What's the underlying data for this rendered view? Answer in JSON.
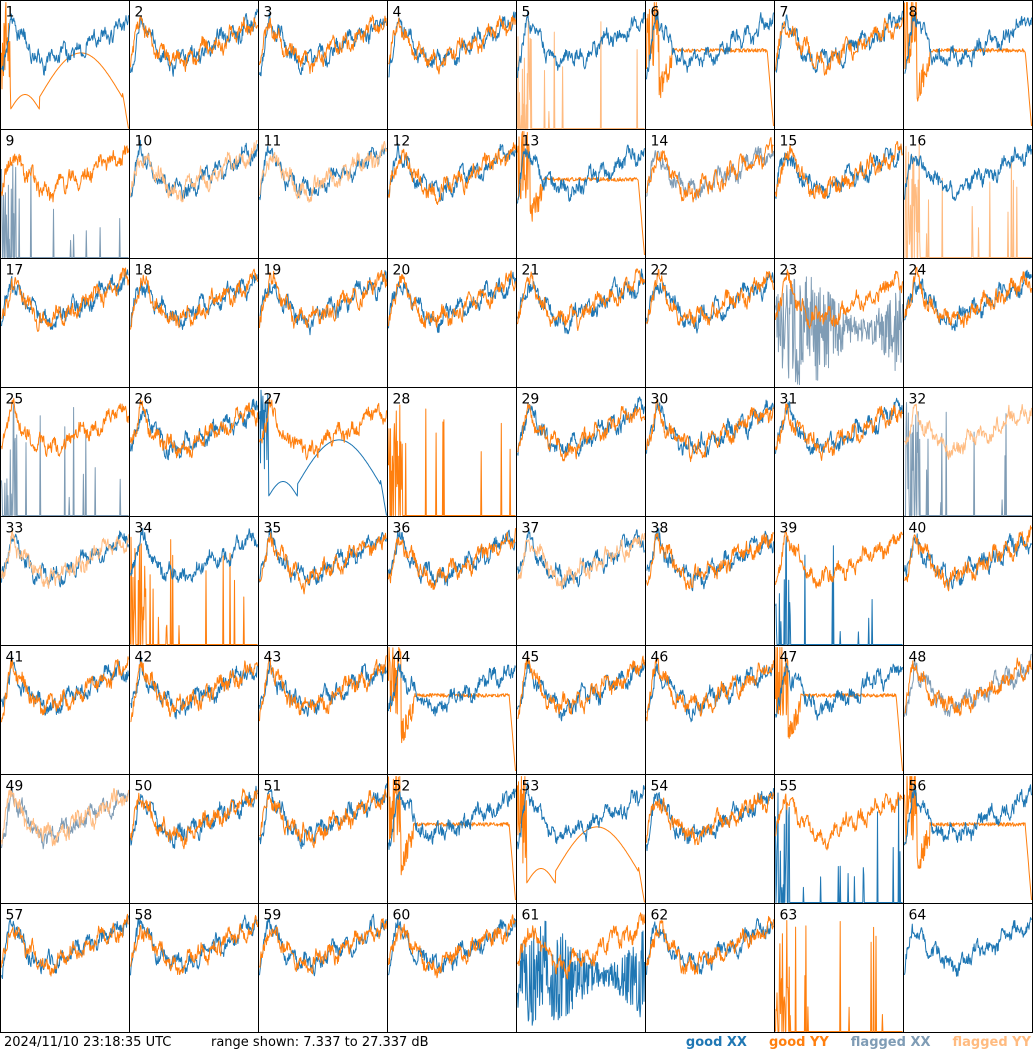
{
  "footer": {
    "timestamp": "2024/11/10 23:18:35 UTC",
    "range_text": "range shown: 7.337 to 27.337 dB"
  },
  "legend": [
    {
      "label": "good XX",
      "color": "#1f77b4"
    },
    {
      "label": "good YY",
      "color": "#ff7f0e"
    },
    {
      "label": "flagged XX",
      "color": "#7f9cb5"
    },
    {
      "label": "flagged YY",
      "color": "#ffbb80"
    }
  ],
  "colors": {
    "good_xx": "#1f77b4",
    "good_yy": "#ff7f0e",
    "flagged_xx": "#7f9cb5",
    "flagged_yy": "#ffbb80"
  },
  "chart_data": {
    "type": "line",
    "layout": "8x8 small multiples",
    "ylim": [
      7.337,
      27.337
    ],
    "yunit": "dB",
    "panels": [
      {
        "label": "1",
        "xx": "good",
        "yy": "good",
        "yy_style": "smooth-dip"
      },
      {
        "label": "2",
        "xx": "good",
        "yy": "good"
      },
      {
        "label": "3",
        "xx": "good",
        "yy": "good"
      },
      {
        "label": "4",
        "xx": "good",
        "yy": "good"
      },
      {
        "label": "5",
        "xx": "good",
        "yy": "flagged",
        "yy_style": "spikes"
      },
      {
        "label": "6",
        "xx": "good",
        "yy": "good",
        "yy_style": "flat"
      },
      {
        "label": "7",
        "xx": "good",
        "yy": "good"
      },
      {
        "label": "8",
        "xx": "good",
        "yy": "good",
        "yy_style": "flat"
      },
      {
        "label": "9",
        "xx": "flagged",
        "yy": "good",
        "xx_style": "spikes"
      },
      {
        "label": "10",
        "xx": "good",
        "yy": "flagged"
      },
      {
        "label": "11",
        "xx": "good",
        "yy": "flagged"
      },
      {
        "label": "12",
        "xx": "good",
        "yy": "good"
      },
      {
        "label": "13",
        "xx": "good",
        "yy": "good",
        "yy_style": "flat"
      },
      {
        "label": "14",
        "xx": "flagged",
        "yy": "good"
      },
      {
        "label": "15",
        "xx": "good",
        "yy": "good"
      },
      {
        "label": "16",
        "xx": "good",
        "yy": "flagged",
        "yy_style": "spikes"
      },
      {
        "label": "17",
        "xx": "good",
        "yy": "good"
      },
      {
        "label": "18",
        "xx": "good",
        "yy": "good"
      },
      {
        "label": "19",
        "xx": "good",
        "yy": "good"
      },
      {
        "label": "20",
        "xx": "good",
        "yy": "good"
      },
      {
        "label": "21",
        "xx": "good",
        "yy": "good"
      },
      {
        "label": "22",
        "xx": "good",
        "yy": "good"
      },
      {
        "label": "23",
        "xx": "flagged",
        "yy": "good",
        "xx_style": "noisy"
      },
      {
        "label": "24",
        "xx": "good",
        "yy": "good"
      },
      {
        "label": "25",
        "xx": "flagged",
        "yy": "good",
        "xx_style": "spikes"
      },
      {
        "label": "26",
        "xx": "good",
        "yy": "good"
      },
      {
        "label": "27",
        "xx": "good",
        "yy": "good",
        "xx_style": "smooth-dip"
      },
      {
        "label": "28",
        "xx": "none",
        "yy": "good",
        "yy_style": "spikes"
      },
      {
        "label": "29",
        "xx": "good",
        "yy": "good"
      },
      {
        "label": "30",
        "xx": "good",
        "yy": "good"
      },
      {
        "label": "31",
        "xx": "good",
        "yy": "good"
      },
      {
        "label": "32",
        "xx": "flagged",
        "yy": "flagged",
        "xx_style": "spikes"
      },
      {
        "label": "33",
        "xx": "good",
        "yy": "flagged"
      },
      {
        "label": "34",
        "xx": "good",
        "yy": "good",
        "yy_style": "spikes"
      },
      {
        "label": "35",
        "xx": "good",
        "yy": "good"
      },
      {
        "label": "36",
        "xx": "good",
        "yy": "good"
      },
      {
        "label": "37",
        "xx": "good",
        "yy": "flagged"
      },
      {
        "label": "38",
        "xx": "good",
        "yy": "good"
      },
      {
        "label": "39",
        "xx": "good",
        "yy": "good",
        "xx_style": "spikes"
      },
      {
        "label": "40",
        "xx": "good",
        "yy": "good"
      },
      {
        "label": "41",
        "xx": "good",
        "yy": "good"
      },
      {
        "label": "42",
        "xx": "good",
        "yy": "good"
      },
      {
        "label": "43",
        "xx": "good",
        "yy": "good"
      },
      {
        "label": "44",
        "xx": "good",
        "yy": "good",
        "yy_style": "flat"
      },
      {
        "label": "45",
        "xx": "good",
        "yy": "good"
      },
      {
        "label": "46",
        "xx": "good",
        "yy": "good"
      },
      {
        "label": "47",
        "xx": "good",
        "yy": "good",
        "yy_style": "flat"
      },
      {
        "label": "48",
        "xx": "flagged",
        "yy": "good"
      },
      {
        "label": "49",
        "xx": "flagged",
        "yy": "flagged"
      },
      {
        "label": "50",
        "xx": "good",
        "yy": "good"
      },
      {
        "label": "51",
        "xx": "good",
        "yy": "good"
      },
      {
        "label": "52",
        "xx": "good",
        "yy": "good",
        "yy_style": "flat"
      },
      {
        "label": "53",
        "xx": "good",
        "yy": "good",
        "yy_style": "smooth-dip"
      },
      {
        "label": "54",
        "xx": "good",
        "yy": "good"
      },
      {
        "label": "55",
        "xx": "good",
        "yy": "good",
        "xx_style": "spikes"
      },
      {
        "label": "56",
        "xx": "good",
        "yy": "good",
        "yy_style": "flat"
      },
      {
        "label": "57",
        "xx": "good",
        "yy": "good"
      },
      {
        "label": "58",
        "xx": "good",
        "yy": "good"
      },
      {
        "label": "59",
        "xx": "good",
        "yy": "good"
      },
      {
        "label": "60",
        "xx": "good",
        "yy": "good"
      },
      {
        "label": "61",
        "xx": "good",
        "yy": "good",
        "xx_style": "noisy"
      },
      {
        "label": "62",
        "xx": "good",
        "yy": "good"
      },
      {
        "label": "63",
        "xx": "none",
        "yy": "good",
        "yy_style": "spikes"
      },
      {
        "label": "64",
        "xx": "good",
        "yy": "none"
      }
    ]
  }
}
